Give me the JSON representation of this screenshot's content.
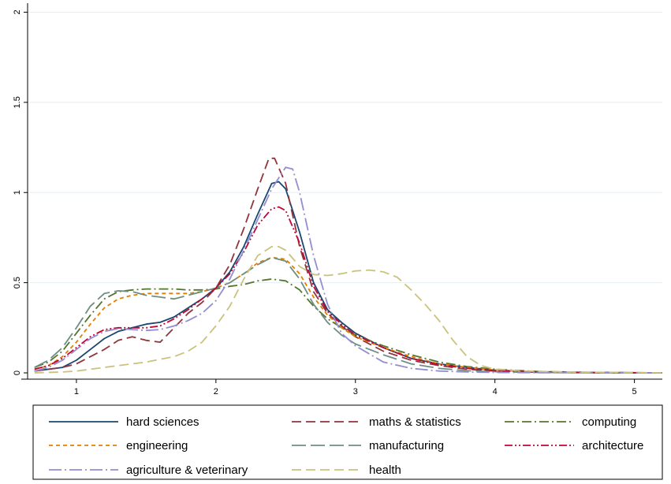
{
  "chart_data": {
    "type": "line",
    "title": "",
    "xlabel": "",
    "ylabel": "",
    "xlim": [
      0.65,
      5.2
    ],
    "ylim": [
      0,
      2.05
    ],
    "x_ticks": [
      1,
      2,
      3,
      4,
      5
    ],
    "x_tick_labels": [
      "1",
      "2",
      "3",
      "4",
      "5"
    ],
    "y_ticks": [
      0,
      0.5,
      1,
      1.5,
      2
    ],
    "y_tick_labels": [
      "0",
      "0.5",
      "1",
      "1.5",
      "2"
    ],
    "grid": "horizontal",
    "legend_position": "bottom",
    "series": [
      {
        "name": "hard sciences",
        "color": "#1a476f",
        "dash": "solid",
        "points": [
          [
            0.7,
            0.01
          ],
          [
            0.9,
            0.03
          ],
          [
            1.0,
            0.07
          ],
          [
            1.1,
            0.13
          ],
          [
            1.2,
            0.19
          ],
          [
            1.3,
            0.23
          ],
          [
            1.4,
            0.25
          ],
          [
            1.5,
            0.27
          ],
          [
            1.6,
            0.28
          ],
          [
            1.7,
            0.31
          ],
          [
            1.8,
            0.36
          ],
          [
            1.9,
            0.41
          ],
          [
            2.0,
            0.47
          ],
          [
            2.1,
            0.56
          ],
          [
            2.2,
            0.7
          ],
          [
            2.3,
            0.88
          ],
          [
            2.4,
            1.05
          ],
          [
            2.45,
            1.06
          ],
          [
            2.5,
            1.02
          ],
          [
            2.6,
            0.78
          ],
          [
            2.7,
            0.5
          ],
          [
            2.8,
            0.35
          ],
          [
            2.9,
            0.28
          ],
          [
            3.0,
            0.22
          ],
          [
            3.2,
            0.14
          ],
          [
            3.4,
            0.08
          ],
          [
            3.6,
            0.05
          ],
          [
            3.8,
            0.03
          ],
          [
            4.0,
            0.015
          ],
          [
            4.3,
            0.006
          ],
          [
            4.7,
            0.002
          ],
          [
            5.2,
            0.0
          ]
        ]
      },
      {
        "name": "maths & statistics",
        "color": "#90353b",
        "dash": "long-dash",
        "points": [
          [
            0.7,
            0.01
          ],
          [
            0.9,
            0.03
          ],
          [
            1.0,
            0.05
          ],
          [
            1.1,
            0.09
          ],
          [
            1.2,
            0.13
          ],
          [
            1.3,
            0.18
          ],
          [
            1.4,
            0.2
          ],
          [
            1.5,
            0.18
          ],
          [
            1.6,
            0.17
          ],
          [
            1.7,
            0.25
          ],
          [
            1.8,
            0.33
          ],
          [
            1.9,
            0.39
          ],
          [
            2.0,
            0.47
          ],
          [
            2.1,
            0.6
          ],
          [
            2.2,
            0.8
          ],
          [
            2.3,
            1.02
          ],
          [
            2.38,
            1.19
          ],
          [
            2.42,
            1.19
          ],
          [
            2.5,
            1.05
          ],
          [
            2.6,
            0.7
          ],
          [
            2.7,
            0.45
          ],
          [
            2.8,
            0.33
          ],
          [
            2.9,
            0.26
          ],
          [
            3.0,
            0.2
          ],
          [
            3.2,
            0.12
          ],
          [
            3.4,
            0.07
          ],
          [
            3.6,
            0.04
          ],
          [
            3.8,
            0.02
          ],
          [
            4.0,
            0.01
          ],
          [
            4.3,
            0.004
          ],
          [
            4.7,
            0.001
          ],
          [
            5.2,
            0.0
          ]
        ]
      },
      {
        "name": "computing",
        "color": "#55752f",
        "dash": "dash-dot",
        "points": [
          [
            0.7,
            0.03
          ],
          [
            0.8,
            0.06
          ],
          [
            0.9,
            0.12
          ],
          [
            1.0,
            0.22
          ],
          [
            1.1,
            0.32
          ],
          [
            1.2,
            0.41
          ],
          [
            1.3,
            0.45
          ],
          [
            1.4,
            0.46
          ],
          [
            1.5,
            0.465
          ],
          [
            1.6,
            0.465
          ],
          [
            1.7,
            0.465
          ],
          [
            1.8,
            0.46
          ],
          [
            1.9,
            0.46
          ],
          [
            2.0,
            0.465
          ],
          [
            2.1,
            0.48
          ],
          [
            2.2,
            0.49
          ],
          [
            2.3,
            0.51
          ],
          [
            2.4,
            0.52
          ],
          [
            2.5,
            0.51
          ],
          [
            2.6,
            0.46
          ],
          [
            2.7,
            0.37
          ],
          [
            2.8,
            0.3
          ],
          [
            2.9,
            0.25
          ],
          [
            3.0,
            0.21
          ],
          [
            3.2,
            0.15
          ],
          [
            3.4,
            0.1
          ],
          [
            3.6,
            0.06
          ],
          [
            3.8,
            0.035
          ],
          [
            4.0,
            0.02
          ],
          [
            4.3,
            0.008
          ],
          [
            4.7,
            0.002
          ],
          [
            5.2,
            0.0
          ]
        ]
      },
      {
        "name": "engineering",
        "color": "#e37e00",
        "dash": "short-dash",
        "points": [
          [
            0.7,
            0.02
          ],
          [
            0.8,
            0.04
          ],
          [
            0.9,
            0.09
          ],
          [
            1.0,
            0.17
          ],
          [
            1.1,
            0.27
          ],
          [
            1.2,
            0.36
          ],
          [
            1.3,
            0.41
          ],
          [
            1.4,
            0.43
          ],
          [
            1.5,
            0.44
          ],
          [
            1.6,
            0.44
          ],
          [
            1.7,
            0.44
          ],
          [
            1.8,
            0.44
          ],
          [
            1.9,
            0.45
          ],
          [
            2.0,
            0.47
          ],
          [
            2.1,
            0.5
          ],
          [
            2.2,
            0.55
          ],
          [
            2.3,
            0.61
          ],
          [
            2.4,
            0.64
          ],
          [
            2.5,
            0.63
          ],
          [
            2.6,
            0.55
          ],
          [
            2.7,
            0.42
          ],
          [
            2.8,
            0.32
          ],
          [
            2.9,
            0.25
          ],
          [
            3.0,
            0.2
          ],
          [
            3.2,
            0.14
          ],
          [
            3.4,
            0.09
          ],
          [
            3.6,
            0.05
          ],
          [
            3.8,
            0.03
          ],
          [
            4.0,
            0.015
          ],
          [
            4.3,
            0.006
          ],
          [
            4.7,
            0.002
          ],
          [
            5.2,
            0.0
          ]
        ]
      },
      {
        "name": "manufacturing",
        "color": "#6e8e84",
        "dash": "long-long-dash",
        "points": [
          [
            0.7,
            0.03
          ],
          [
            0.8,
            0.07
          ],
          [
            0.9,
            0.14
          ],
          [
            1.0,
            0.25
          ],
          [
            1.1,
            0.37
          ],
          [
            1.2,
            0.44
          ],
          [
            1.3,
            0.455
          ],
          [
            1.4,
            0.45
          ],
          [
            1.5,
            0.43
          ],
          [
            1.6,
            0.42
          ],
          [
            1.7,
            0.41
          ],
          [
            1.8,
            0.43
          ],
          [
            1.9,
            0.45
          ],
          [
            2.0,
            0.47
          ],
          [
            2.1,
            0.5
          ],
          [
            2.2,
            0.55
          ],
          [
            2.3,
            0.6
          ],
          [
            2.4,
            0.64
          ],
          [
            2.5,
            0.62
          ],
          [
            2.6,
            0.52
          ],
          [
            2.7,
            0.38
          ],
          [
            2.8,
            0.28
          ],
          [
            2.9,
            0.21
          ],
          [
            3.0,
            0.16
          ],
          [
            3.2,
            0.1
          ],
          [
            3.4,
            0.05
          ],
          [
            3.6,
            0.025
          ],
          [
            3.8,
            0.012
          ],
          [
            4.0,
            0.006
          ],
          [
            4.3,
            0.002
          ],
          [
            4.7,
            0.0005
          ],
          [
            5.2,
            0.0
          ]
        ]
      },
      {
        "name": "architecture",
        "color": "#c10534",
        "dash": "dash-dot-dot",
        "points": [
          [
            0.7,
            0.02
          ],
          [
            0.8,
            0.04
          ],
          [
            0.9,
            0.08
          ],
          [
            1.0,
            0.14
          ],
          [
            1.1,
            0.2
          ],
          [
            1.2,
            0.24
          ],
          [
            1.3,
            0.25
          ],
          [
            1.4,
            0.25
          ],
          [
            1.5,
            0.25
          ],
          [
            1.6,
            0.26
          ],
          [
            1.7,
            0.3
          ],
          [
            1.8,
            0.35
          ],
          [
            1.9,
            0.41
          ],
          [
            2.0,
            0.47
          ],
          [
            2.1,
            0.55
          ],
          [
            2.2,
            0.67
          ],
          [
            2.3,
            0.82
          ],
          [
            2.4,
            0.91
          ],
          [
            2.45,
            0.92
          ],
          [
            2.5,
            0.9
          ],
          [
            2.6,
            0.72
          ],
          [
            2.7,
            0.48
          ],
          [
            2.8,
            0.34
          ],
          [
            2.9,
            0.27
          ],
          [
            3.0,
            0.21
          ],
          [
            3.2,
            0.14
          ],
          [
            3.4,
            0.08
          ],
          [
            3.6,
            0.045
          ],
          [
            3.8,
            0.025
          ],
          [
            4.0,
            0.012
          ],
          [
            4.3,
            0.005
          ],
          [
            4.7,
            0.0015
          ],
          [
            5.2,
            0.0
          ]
        ]
      },
      {
        "name": "agriculture & veterinary",
        "color": "#938dd2",
        "dash": "long-dash-dot",
        "points": [
          [
            0.7,
            0.01
          ],
          [
            0.8,
            0.03
          ],
          [
            0.9,
            0.07
          ],
          [
            1.0,
            0.13
          ],
          [
            1.1,
            0.19
          ],
          [
            1.2,
            0.23
          ],
          [
            1.3,
            0.245
          ],
          [
            1.4,
            0.24
          ],
          [
            1.5,
            0.235
          ],
          [
            1.6,
            0.24
          ],
          [
            1.7,
            0.26
          ],
          [
            1.8,
            0.29
          ],
          [
            1.9,
            0.33
          ],
          [
            2.0,
            0.4
          ],
          [
            2.1,
            0.52
          ],
          [
            2.2,
            0.68
          ],
          [
            2.3,
            0.85
          ],
          [
            2.4,
            1.02
          ],
          [
            2.5,
            1.14
          ],
          [
            2.55,
            1.13
          ],
          [
            2.6,
            1.0
          ],
          [
            2.7,
            0.65
          ],
          [
            2.8,
            0.38
          ],
          [
            2.9,
            0.22
          ],
          [
            3.0,
            0.15
          ],
          [
            3.2,
            0.06
          ],
          [
            3.4,
            0.025
          ],
          [
            3.6,
            0.01
          ],
          [
            3.8,
            0.005
          ],
          [
            4.0,
            0.002
          ],
          [
            4.3,
            0.0008
          ],
          [
            5.2,
            0.0
          ]
        ]
      },
      {
        "name": "health",
        "color": "#cac27e",
        "dash": "long-dash",
        "points": [
          [
            0.7,
            0.0
          ],
          [
            0.9,
            0.005
          ],
          [
            1.0,
            0.01
          ],
          [
            1.1,
            0.02
          ],
          [
            1.2,
            0.03
          ],
          [
            1.3,
            0.04
          ],
          [
            1.4,
            0.05
          ],
          [
            1.5,
            0.06
          ],
          [
            1.6,
            0.075
          ],
          [
            1.7,
            0.09
          ],
          [
            1.8,
            0.12
          ],
          [
            1.9,
            0.17
          ],
          [
            2.0,
            0.26
          ],
          [
            2.1,
            0.37
          ],
          [
            2.2,
            0.52
          ],
          [
            2.3,
            0.65
          ],
          [
            2.4,
            0.7
          ],
          [
            2.45,
            0.7
          ],
          [
            2.5,
            0.68
          ],
          [
            2.6,
            0.59
          ],
          [
            2.7,
            0.545
          ],
          [
            2.8,
            0.54
          ],
          [
            2.9,
            0.55
          ],
          [
            3.0,
            0.565
          ],
          [
            3.1,
            0.57
          ],
          [
            3.2,
            0.56
          ],
          [
            3.3,
            0.53
          ],
          [
            3.4,
            0.46
          ],
          [
            3.5,
            0.38
          ],
          [
            3.6,
            0.29
          ],
          [
            3.7,
            0.18
          ],
          [
            3.8,
            0.09
          ],
          [
            3.9,
            0.04
          ],
          [
            4.0,
            0.02
          ],
          [
            4.2,
            0.01
          ],
          [
            4.5,
            0.005
          ],
          [
            5.2,
            0.0
          ]
        ]
      }
    ]
  }
}
